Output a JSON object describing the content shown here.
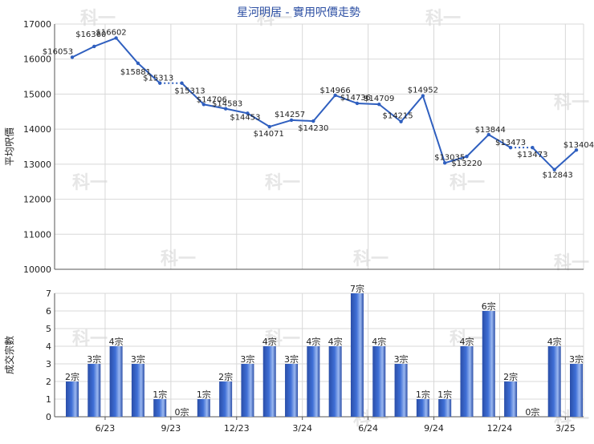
{
  "title": "星河明居 - 實用呎價走勢",
  "colors": {
    "line": "#2f5fbf",
    "bar_dark": "#2a4ea8",
    "bar_mid": "#3f6fd6",
    "bar_light": "#9bb8f0",
    "grid": "#d8d8d8",
    "axis": "#555555",
    "title": "#2c4fa3",
    "watermark": "#e6e6e6"
  },
  "watermark_text": "科一",
  "chart_data": [
    {
      "type": "line",
      "ylabel": "平均呎價",
      "ylim": [
        10000,
        17000
      ],
      "yticks": [
        10000,
        11000,
        12000,
        13000,
        14000,
        15000,
        16000,
        17000
      ],
      "grid": true,
      "points": [
        {
          "i": 0,
          "value": 16053,
          "label": "$16053"
        },
        {
          "i": 1,
          "value": 16360,
          "label": "$16360"
        },
        {
          "i": 2,
          "value": 16602,
          "label": "$16602"
        },
        {
          "i": 3,
          "value": 15881,
          "label": "$15881"
        },
        {
          "i": 4,
          "value": 15313,
          "label": "$15313"
        },
        {
          "i": 5,
          "value": 15313,
          "label": "$15313"
        },
        {
          "i": 6,
          "value": 14706,
          "label": "$14706"
        },
        {
          "i": 7,
          "value": 14583,
          "label": "$14583"
        },
        {
          "i": 8,
          "value": 14453,
          "label": "$14453"
        },
        {
          "i": 9,
          "value": 14071,
          "label": "$14071"
        },
        {
          "i": 10,
          "value": 14257,
          "label": "$14257"
        },
        {
          "i": 11,
          "value": 14230,
          "label": "$14230"
        },
        {
          "i": 12,
          "value": 14966,
          "label": "$14966"
        },
        {
          "i": 13,
          "value": 14736,
          "label": "$14736"
        },
        {
          "i": 14,
          "value": 14709,
          "label": "$14709"
        },
        {
          "i": 15,
          "value": 14215,
          "label": "$14215"
        },
        {
          "i": 16,
          "value": 14952,
          "label": "$14952"
        },
        {
          "i": 17,
          "value": 13035,
          "label": "$13035"
        },
        {
          "i": 18,
          "value": 13220,
          "label": "$13220"
        },
        {
          "i": 19,
          "value": 13844,
          "label": "$13844"
        },
        {
          "i": 20,
          "value": 13473,
          "label": "$13473"
        },
        {
          "i": 21,
          "value": 13473,
          "label": "$13473"
        },
        {
          "i": 22,
          "value": 12843,
          "label": "$12843"
        },
        {
          "i": 23,
          "value": 13404,
          "label": "$13404"
        }
      ],
      "dotted_segments": [
        [
          4,
          5
        ],
        [
          20,
          21
        ]
      ]
    },
    {
      "type": "bar",
      "ylabel": "成交宗數",
      "ylim": [
        0,
        7
      ],
      "yticks": [
        0,
        1,
        2,
        3,
        4,
        5,
        6,
        7
      ],
      "grid": true,
      "x_tick_labels": [
        {
          "after_index": 1,
          "label": "6/23"
        },
        {
          "after_index": 4,
          "label": "9/23"
        },
        {
          "after_index": 7,
          "label": "12/23"
        },
        {
          "after_index": 10,
          "label": "3/24"
        },
        {
          "after_index": 13,
          "label": "6/24"
        },
        {
          "after_index": 16,
          "label": "9/24"
        },
        {
          "after_index": 19,
          "label": "12/24"
        },
        {
          "after_index": 22,
          "label": "3/25"
        }
      ],
      "values": [
        2,
        3,
        4,
        3,
        1,
        0,
        1,
        2,
        3,
        4,
        3,
        4,
        4,
        7,
        4,
        3,
        1,
        1,
        4,
        6,
        2,
        0,
        4,
        3
      ],
      "labels": [
        "2宗",
        "3宗",
        "4宗",
        "3宗",
        "1宗",
        "0宗",
        "1宗",
        "2宗",
        "3宗",
        "4宗",
        "3宗",
        "4宗",
        "4宗",
        "7宗",
        "4宗",
        "3宗",
        "1宗",
        "1宗",
        "4宗",
        "6宗",
        "2宗",
        "0宗",
        "4宗",
        "3宗"
      ]
    }
  ]
}
